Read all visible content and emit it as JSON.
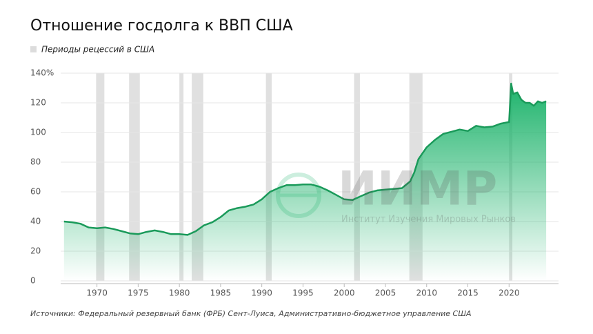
{
  "chart_data": {
    "type": "area",
    "title": "Отношение госдолга к ВВП США",
    "legend_label": "Периоды рецессий в США",
    "source": "Источники: Федеральный резервный банк (ФРБ) Сент-Луиса, Административно-бюджетное управление США",
    "watermark": {
      "logo": "ИИМР",
      "text": "Институт Изучения Мировых Рынков"
    },
    "color": "#1a9a5a",
    "recession_color": "#e0e0e0",
    "x": [
      1966,
      1967,
      1968,
      1969,
      1970,
      1971,
      1972,
      1973,
      1974,
      1975,
      1976,
      1977,
      1978,
      1979,
      1980,
      1981,
      1982,
      1983,
      1984,
      1985,
      1986,
      1987,
      1988,
      1989,
      1990,
      1991,
      1992,
      1993,
      1994,
      1995,
      1996,
      1997,
      1998,
      1999,
      2000,
      2001,
      2002,
      2003,
      2004,
      2005,
      2006,
      2007,
      2008,
      2008.5,
      2009,
      2010,
      2011,
      2012,
      2013,
      2014,
      2015,
      2016,
      2017,
      2018,
      2019,
      2019.9,
      2020,
      2020.25,
      2020.5,
      2021,
      2021.5,
      2022,
      2022.5,
      2023,
      2023.5,
      2024,
      2024.5
    ],
    "values": [
      40,
      39.5,
      38.5,
      36,
      35.5,
      36,
      35,
      33.5,
      32,
      31.5,
      33,
      34,
      33,
      31.5,
      31.5,
      31,
      33.5,
      37.5,
      39.5,
      43,
      47.5,
      49,
      50,
      51.5,
      55,
      60,
      62.5,
      64.5,
      64.5,
      65,
      65,
      63.5,
      61,
      58,
      55,
      54.5,
      57,
      59.5,
      61,
      61.5,
      62,
      62.5,
      67,
      73,
      82,
      90,
      95,
      99,
      100.5,
      102,
      101,
      104.5,
      103.5,
      104,
      106,
      107,
      107,
      133,
      126,
      127,
      122,
      120,
      120,
      118,
      121,
      120,
      121
    ],
    "recessions": [
      [
        1969.9,
        1970.9
      ],
      [
        1973.9,
        1975.2
      ],
      [
        1980.0,
        1980.5
      ],
      [
        1981.5,
        1982.9
      ],
      [
        1990.5,
        1991.2
      ],
      [
        2001.2,
        2001.9
      ],
      [
        2007.9,
        2009.5
      ],
      [
        2020.0,
        2020.4
      ]
    ],
    "xlim": [
      1965.6,
      2026
    ],
    "xticks": [
      1970,
      1975,
      1980,
      1985,
      1990,
      1995,
      2000,
      2005,
      2010,
      2015,
      2020
    ],
    "ylim": [
      0,
      140
    ],
    "yticks": [
      0,
      20,
      40,
      60,
      80,
      100,
      120,
      {
        "value": 140,
        "label": "140%"
      }
    ],
    "grid": true
  }
}
